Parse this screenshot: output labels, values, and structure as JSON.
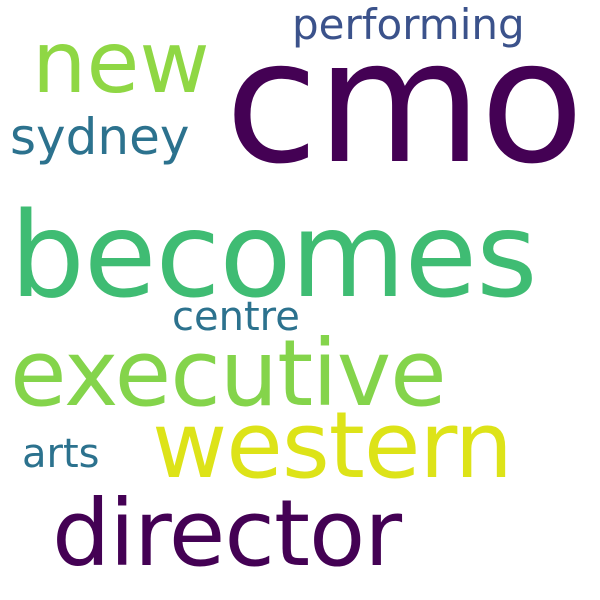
{
  "word_cloud": {
    "words": [
      {
        "key": "cmo",
        "text": "cmo",
        "color": "#440154"
      },
      {
        "key": "new",
        "text": "new",
        "color": "#8fd744"
      },
      {
        "key": "performing",
        "text": "performing",
        "color": "#3b528b"
      },
      {
        "key": "sydney",
        "text": "sydney",
        "color": "#2c728e"
      },
      {
        "key": "becomes",
        "text": "becomes",
        "color": "#3fbc73"
      },
      {
        "key": "centre",
        "text": "centre",
        "color": "#2c728e"
      },
      {
        "key": "executive",
        "text": "executive",
        "color": "#84d44b"
      },
      {
        "key": "western",
        "text": "western",
        "color": "#dde318"
      },
      {
        "key": "arts",
        "text": "arts",
        "color": "#2c728e"
      },
      {
        "key": "director",
        "text": "director",
        "color": "#440154"
      }
    ]
  }
}
